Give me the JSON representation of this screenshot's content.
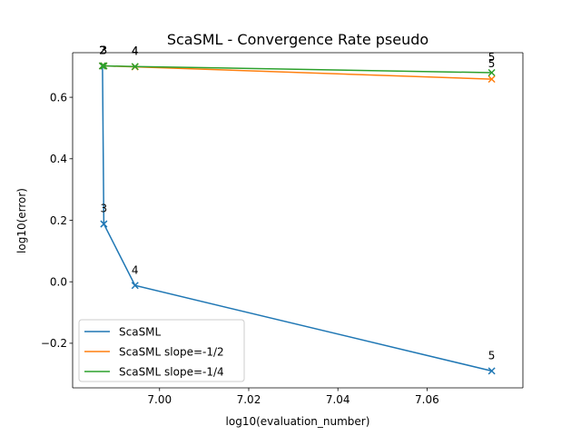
{
  "chart_data": {
    "type": "line",
    "title": "ScaSML - Convergence Rate pseudo",
    "xlabel": "log10(evaluation_number)",
    "ylabel": "log10(error)",
    "xlim": [
      6.9805,
      7.0815
    ],
    "ylim": [
      -0.345,
      0.745
    ],
    "xticks": [
      7.0,
      7.02,
      7.04,
      7.06
    ],
    "xtick_labels": [
      "7.00",
      "7.02",
      "7.04",
      "7.06"
    ],
    "yticks": [
      -0.2,
      0.0,
      0.2,
      0.4,
      0.6
    ],
    "ytick_labels": [
      "−0.2",
      "0.0",
      "0.2",
      "0.4",
      "0.6"
    ],
    "grid": false,
    "legend_position": "lower-left",
    "series": [
      {
        "name": "ScaSML",
        "color": "#1f77b4",
        "marker": "x",
        "x": [
          6.9872,
          6.9875,
          6.9945,
          7.0745
        ],
        "y": [
          0.702,
          0.188,
          -0.012,
          -0.29
        ],
        "point_labels": [
          "2",
          "3",
          "4",
          "5"
        ]
      },
      {
        "name": "ScaSML slope=-1/2",
        "color": "#ff7f0e",
        "marker": "x",
        "x": [
          6.9872,
          6.9875,
          6.9945,
          7.0745
        ],
        "y": [
          0.702,
          0.702,
          0.699,
          0.659
        ],
        "point_labels": [
          "2",
          "3",
          "4",
          "5"
        ]
      },
      {
        "name": "ScaSML slope=-1/4",
        "color": "#2ca02c",
        "marker": "x",
        "x": [
          6.9872,
          6.9875,
          6.9945,
          7.0745
        ],
        "y": [
          0.702,
          0.702,
          0.7,
          0.68
        ],
        "point_labels": [
          "2",
          "3",
          "4",
          "5"
        ]
      }
    ]
  }
}
